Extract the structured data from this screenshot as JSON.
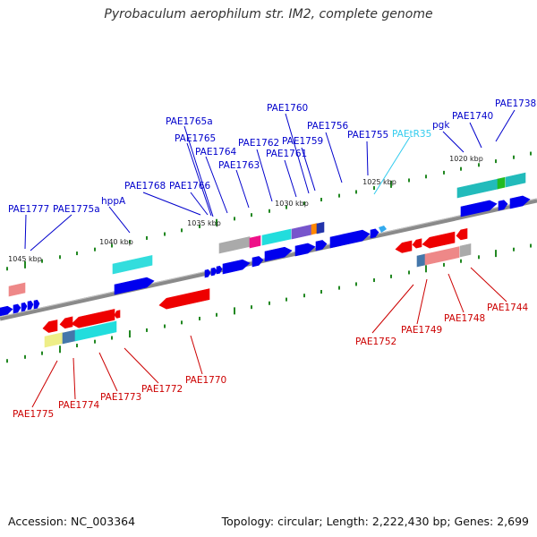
{
  "title": "Pyrobaculum aerophilum str. IM2, complete genome",
  "footer": {
    "accession": "Accession: NC_003364",
    "topology": "Topology: circular; Length: 2,222,430 bp; Genes: 2,699"
  },
  "colors": {
    "forward_label": "#0000cc",
    "reverse_label": "#cc0000",
    "trna_label": "#33ccee",
    "forward_gene": "#0000ee",
    "reverse_gene": "#ee0000",
    "backbone": "#8a8a8a",
    "tick": "#228822"
  },
  "ruler_labels": [
    "1045 kbp",
    "1040 kbp",
    "1035 kbp",
    "1030 kbp",
    "1025 kbp",
    "1020 kbp"
  ],
  "forward_labels": [
    "PAE1777",
    "PAE1775a",
    "hppA",
    "PAE1768",
    "PAE1766",
    "PAE1765a",
    "PAE1765",
    "PAE1764",
    "PAE1763",
    "PAE1762",
    "PAE1761",
    "PAE1760",
    "PAE1759",
    "PAE1756",
    "PAE1755",
    "pgk",
    "PAE1740",
    "PAE1738"
  ],
  "trna_label": "PAEtR35",
  "reverse_labels": [
    "PAE1775",
    "PAE1774",
    "PAE1773",
    "PAE1772",
    "PAE1770",
    "PAE1752",
    "PAE1749",
    "PAE1748",
    "PAE1744"
  ]
}
